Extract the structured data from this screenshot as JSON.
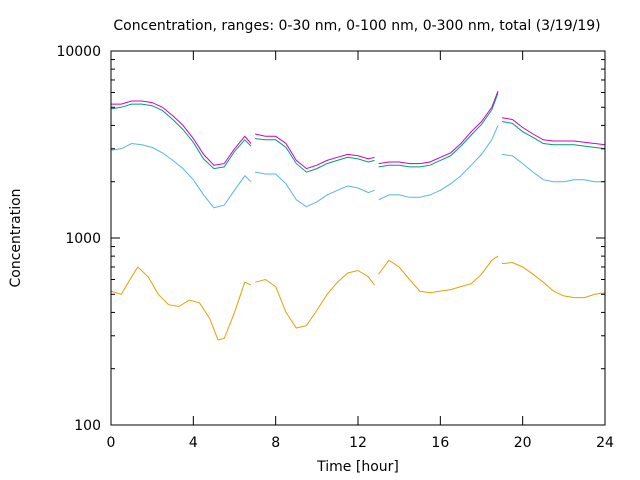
{
  "chart_data": {
    "type": "line",
    "title": "Concentration, ranges: 0-30 nm, 0-100 nm, 0-300 nm, total (3/19/19)",
    "xlabel": "Time [hour]",
    "ylabel": "Concentration",
    "xlim": [
      0,
      24
    ],
    "ylim": [
      100,
      10000
    ],
    "yscale": "log",
    "legend": "none",
    "grid": false,
    "x_ticks": [
      "0",
      "4",
      "8",
      "12",
      "16",
      "20",
      "24"
    ],
    "y_ticks": [
      "100",
      "1000",
      "10000"
    ],
    "series": [
      {
        "color": "#cc00cc",
        "segments": [
          [
            [
              0,
              5200
            ],
            [
              0.5,
              5200
            ],
            [
              1,
              5400
            ],
            [
              1.5,
              5400
            ],
            [
              2,
              5300
            ],
            [
              2.5,
              5000
            ],
            [
              3,
              4500
            ],
            [
              3.5,
              4000
            ],
            [
              4,
              3400
            ],
            [
              4.5,
              2800
            ],
            [
              5,
              2450
            ],
            [
              5.5,
              2500
            ],
            [
              6,
              3000
            ],
            [
              6.5,
              3500
            ],
            [
              6.8,
              3200
            ]
          ],
          [
            [
              7,
              3600
            ],
            [
              7.5,
              3500
            ],
            [
              8,
              3500
            ],
            [
              8.5,
              3200
            ],
            [
              9,
              2600
            ],
            [
              9.5,
              2350
            ],
            [
              10,
              2450
            ],
            [
              10.5,
              2600
            ],
            [
              11,
              2700
            ],
            [
              11.5,
              2800
            ],
            [
              12,
              2750
            ],
            [
              12.5,
              2650
            ],
            [
              12.8,
              2700
            ]
          ],
          [
            [
              13,
              2500
            ],
            [
              13.5,
              2550
            ],
            [
              14,
              2550
            ],
            [
              14.5,
              2500
            ],
            [
              15,
              2500
            ],
            [
              15.5,
              2550
            ],
            [
              16,
              2700
            ],
            [
              16.5,
              2850
            ],
            [
              17,
              3200
            ],
            [
              17.5,
              3700
            ],
            [
              18,
              4200
            ],
            [
              18.5,
              5000
            ],
            [
              18.8,
              6100
            ]
          ],
          [
            [
              19,
              4400
            ],
            [
              19.5,
              4300
            ],
            [
              20,
              3900
            ],
            [
              20.5,
              3600
            ],
            [
              21,
              3350
            ],
            [
              21.5,
              3300
            ],
            [
              22,
              3300
            ],
            [
              22.5,
              3300
            ],
            [
              23,
              3250
            ],
            [
              23.5,
              3200
            ],
            [
              24,
              3150
            ]
          ]
        ]
      },
      {
        "color": "#009e73",
        "segments": [
          [
            [
              0,
              4900
            ],
            [
              0.5,
              5000
            ],
            [
              1,
              5200
            ],
            [
              1.5,
              5200
            ],
            [
              2,
              5100
            ],
            [
              2.5,
              4800
            ],
            [
              3,
              4300
            ],
            [
              3.5,
              3800
            ],
            [
              4,
              3250
            ],
            [
              4.5,
              2650
            ],
            [
              5,
              2350
            ],
            [
              5.5,
              2400
            ],
            [
              6,
              2900
            ],
            [
              6.5,
              3350
            ],
            [
              6.8,
              3100
            ]
          ],
          [
            [
              7,
              3400
            ],
            [
              7.5,
              3350
            ],
            [
              8,
              3350
            ],
            [
              8.5,
              3050
            ],
            [
              9,
              2500
            ],
            [
              9.5,
              2250
            ],
            [
              10,
              2350
            ],
            [
              10.5,
              2500
            ],
            [
              11,
              2600
            ],
            [
              11.5,
              2700
            ],
            [
              12,
              2650
            ],
            [
              12.5,
              2550
            ],
            [
              12.8,
              2600
            ]
          ],
          [
            [
              13,
              2400
            ],
            [
              13.5,
              2450
            ],
            [
              14,
              2450
            ],
            [
              14.5,
              2400
            ],
            [
              15,
              2400
            ],
            [
              15.5,
              2450
            ],
            [
              16,
              2600
            ],
            [
              16.5,
              2750
            ],
            [
              17,
              3100
            ],
            [
              17.5,
              3550
            ],
            [
              18,
              4050
            ],
            [
              18.5,
              4850
            ],
            [
              18.8,
              5950
            ]
          ],
          [
            [
              19,
              4200
            ],
            [
              19.5,
              4100
            ],
            [
              20,
              3700
            ],
            [
              20.5,
              3450
            ],
            [
              21,
              3200
            ],
            [
              21.5,
              3150
            ],
            [
              22,
              3150
            ],
            [
              22.5,
              3150
            ],
            [
              23,
              3100
            ],
            [
              23.5,
              3050
            ],
            [
              24,
              3000
            ]
          ]
        ]
      },
      {
        "color": "#56b4e9",
        "segments": [
          [
            [
              0,
              2950
            ],
            [
              0.5,
              3000
            ],
            [
              1,
              3200
            ],
            [
              1.5,
              3150
            ],
            [
              2,
              3050
            ],
            [
              2.5,
              2850
            ],
            [
              3,
              2600
            ],
            [
              3.5,
              2350
            ],
            [
              4,
              2050
            ],
            [
              4.5,
              1700
            ],
            [
              5,
              1450
            ],
            [
              5.5,
              1500
            ],
            [
              6,
              1800
            ],
            [
              6.5,
              2150
            ],
            [
              6.8,
              2000
            ]
          ],
          [
            [
              7,
              2250
            ],
            [
              7.5,
              2200
            ],
            [
              8,
              2200
            ],
            [
              8.5,
              1950
            ],
            [
              9,
              1600
            ],
            [
              9.5,
              1470
            ],
            [
              10,
              1560
            ],
            [
              10.5,
              1700
            ],
            [
              11,
              1800
            ],
            [
              11.5,
              1900
            ],
            [
              12,
              1850
            ],
            [
              12.5,
              1750
            ],
            [
              12.8,
              1800
            ]
          ],
          [
            [
              13,
              1600
            ],
            [
              13.5,
              1700
            ],
            [
              14,
              1700
            ],
            [
              14.5,
              1650
            ],
            [
              15,
              1650
            ],
            [
              15.5,
              1700
            ],
            [
              16,
              1800
            ],
            [
              16.5,
              1950
            ],
            [
              17,
              2150
            ],
            [
              17.5,
              2450
            ],
            [
              18,
              2800
            ],
            [
              18.5,
              3350
            ],
            [
              18.8,
              4000
            ]
          ],
          [
            [
              19,
              2800
            ],
            [
              19.5,
              2750
            ],
            [
              20,
              2500
            ],
            [
              20.5,
              2250
            ],
            [
              21,
              2050
            ],
            [
              21.5,
              2000
            ],
            [
              22,
              2000
            ],
            [
              22.5,
              2050
            ],
            [
              23,
              2050
            ],
            [
              23.5,
              2000
            ],
            [
              24,
              2000
            ]
          ]
        ]
      },
      {
        "color": "#e69f00",
        "segments": [
          [
            [
              0,
              520
            ],
            [
              0.5,
              500
            ],
            [
              1,
              620
            ],
            [
              1.3,
              700
            ],
            [
              1.8,
              620
            ],
            [
              2.3,
              500
            ],
            [
              2.8,
              440
            ],
            [
              3.3,
              430
            ],
            [
              3.8,
              465
            ],
            [
              4.3,
              450
            ],
            [
              4.8,
              370
            ],
            [
              5.2,
              285
            ],
            [
              5.5,
              290
            ],
            [
              6,
              400
            ],
            [
              6.5,
              580
            ],
            [
              6.8,
              560
            ]
          ],
          [
            [
              7,
              580
            ],
            [
              7.5,
              600
            ],
            [
              8,
              550
            ],
            [
              8.5,
              400
            ],
            [
              9,
              330
            ],
            [
              9.5,
              340
            ],
            [
              10,
              410
            ],
            [
              10.5,
              500
            ],
            [
              11,
              580
            ],
            [
              11.5,
              650
            ],
            [
              12,
              670
            ],
            [
              12.5,
              620
            ],
            [
              12.8,
              560
            ]
          ],
          [
            [
              13,
              640
            ],
            [
              13.5,
              760
            ],
            [
              14,
              700
            ],
            [
              14.5,
              600
            ],
            [
              15,
              520
            ],
            [
              15.5,
              510
            ],
            [
              16,
              520
            ],
            [
              16.5,
              530
            ],
            [
              17,
              550
            ],
            [
              17.5,
              570
            ],
            [
              18,
              640
            ],
            [
              18.5,
              760
            ],
            [
              18.8,
              800
            ]
          ],
          [
            [
              19,
              730
            ],
            [
              19.5,
              740
            ],
            [
              20,
              700
            ],
            [
              20.5,
              640
            ],
            [
              21,
              580
            ],
            [
              21.5,
              520
            ],
            [
              22,
              490
            ],
            [
              22.5,
              480
            ],
            [
              23,
              480
            ],
            [
              23.5,
              500
            ],
            [
              24,
              510
            ]
          ]
        ]
      }
    ]
  }
}
